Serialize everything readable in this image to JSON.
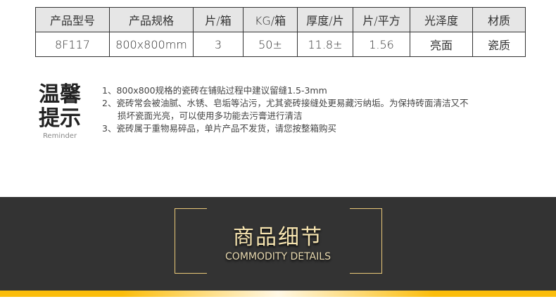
{
  "table": {
    "headers": [
      "产品型号",
      "产品规格",
      "片/箱",
      "KG/箱",
      "厚度/片",
      "片/平方",
      "光泽度",
      "材质"
    ],
    "row": [
      "8F117",
      "800x800mm",
      "3",
      "50±",
      "11.8±",
      "1.56",
      "亮面",
      "瓷质"
    ]
  },
  "reminder": {
    "title_line1": "温馨",
    "title_line2": "提示",
    "subtitle": "Reminder",
    "tips": [
      "1、800x800规格的瓷砖在铺贴过程中建议留缝1.5-3mm",
      "2、瓷砖常会被油腻、水锈、皂垢等沾污，尤其瓷砖接缝处更易藏污纳垢。为保持砖面清洁又不",
      "损坏瓷面光亮，可以使用多功能去污膏进行清洁",
      "3、瓷砖属于重物易碎品，单片产品不发货，请您按整箱购买"
    ]
  },
  "details": {
    "title": "商品细节",
    "subtitle": "COMMODITY DETAILS",
    "accent": "#fbbd0b",
    "bracket_color": "#e9c878"
  }
}
